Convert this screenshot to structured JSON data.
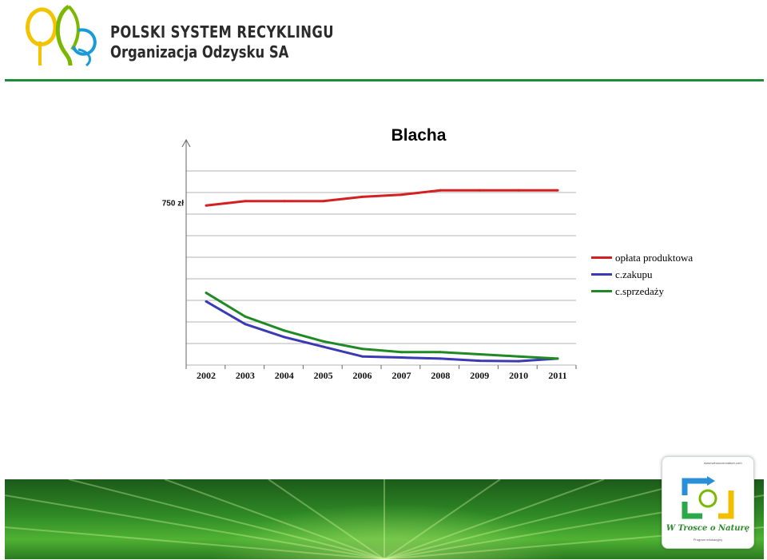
{
  "header": {
    "org_name": "POLSKI SYSTEM RECYKLINGU",
    "org_sub": "Organizacja Odzysku SA",
    "logo_icon": "leaf-tree-logo-icon",
    "accent": "#1e8a3c"
  },
  "chart_data": {
    "type": "line",
    "title": "Blacha",
    "categories": [
      "2002",
      "2003",
      "2004",
      "2005",
      "2006",
      "2007",
      "2008",
      "2009",
      "2010",
      "2011"
    ],
    "y_label": "750 zł",
    "y_label_value": 750,
    "ylim": [
      0,
      900
    ],
    "y_gridlines": [
      0,
      100,
      200,
      300,
      400,
      500,
      600,
      700,
      800,
      900
    ],
    "grid": true,
    "legend_position": "right",
    "series": [
      {
        "name": "opłata produktowa",
        "color": "#d42020",
        "values": [
          740,
          760,
          760,
          760,
          780,
          790,
          810,
          810,
          810,
          810
        ]
      },
      {
        "name": "c.zakupu",
        "color": "#3a3ab4",
        "values": [
          295,
          190,
          130,
          85,
          40,
          35,
          30,
          20,
          18,
          30
        ]
      },
      {
        "name": "c.sprzedaży",
        "color": "#1f8a24",
        "values": [
          335,
          225,
          160,
          110,
          75,
          60,
          60,
          50,
          40,
          30
        ]
      }
    ]
  },
  "footer": {
    "badge_title": "W Trosce o Naturę",
    "badge_site": "www.wtroscceonature.com",
    "badge_sub": "Program edukacyjny"
  }
}
